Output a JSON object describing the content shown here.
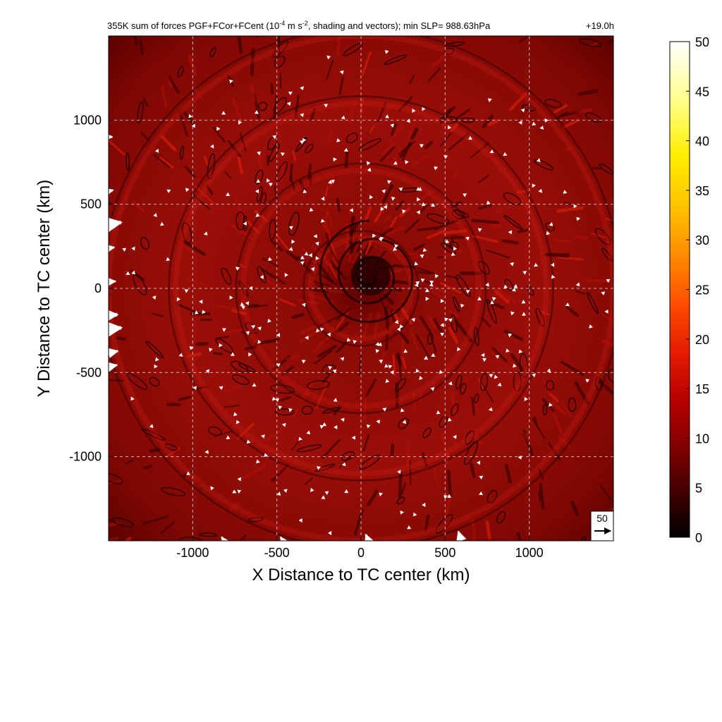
{
  "chart_data": {
    "type": "heatmap",
    "title": {
      "main": "355K sum of forces PGF+FCor+FCent (10",
      "exp1": "-4",
      "mid": " m s",
      "exp2": "-2",
      "end": ", shading and vectors); min SLP= 988.63hPa",
      "time": "+19.0h"
    },
    "xlabel": "X Distance to TC center (km)",
    "ylabel": "Y Distance to TC center (km)",
    "xlim": [
      -1500,
      1500
    ],
    "ylim": [
      -1500,
      1500
    ],
    "x_ticks": [
      -1000,
      -500,
      0,
      500,
      1000
    ],
    "y_ticks": [
      -1000,
      -500,
      0,
      500,
      1000
    ],
    "x_tick_labels": [
      "-1000",
      "-500",
      "0",
      "500",
      "1000"
    ],
    "y_tick_labels": [
      "-1000",
      "-500",
      "0",
      "500",
      "1000"
    ],
    "grid": true,
    "colorbar": {
      "min": 0,
      "max": 50,
      "ticks": [
        0,
        5,
        10,
        15,
        20,
        25,
        30,
        35,
        40,
        45,
        50
      ],
      "tick_labels": [
        "0",
        "5",
        "10",
        "15",
        "20",
        "25",
        "30",
        "35",
        "40",
        "45",
        "50"
      ],
      "colormap": [
        "#000000",
        "#3a0000",
        "#7a0000",
        "#b30000",
        "#e31a00",
        "#ff4d00",
        "#ff8c00",
        "#ffc400",
        "#ffee00",
        "#ffff8a",
        "#ffffff"
      ]
    },
    "reference_vector": {
      "value": 50,
      "label": "50"
    },
    "field_summary": {
      "typical_magnitude": 8,
      "vortex_center": [
        0,
        0
      ],
      "ring_radii_km": [
        300,
        700,
        1100,
        1500
      ]
    },
    "large_vectors": [
      {
        "x": -1500,
        "y": 380,
        "u": 38,
        "v": 6
      },
      {
        "x": -1500,
        "y": -160,
        "u": 26,
        "v": 2
      },
      {
        "x": -1480,
        "y": -240,
        "u": 28,
        "v": 3
      },
      {
        "x": -1480,
        "y": -380,
        "u": 18,
        "v": 4
      },
      {
        "x": -1470,
        "y": -460,
        "u": 10,
        "v": 2
      },
      {
        "x": -1490,
        "y": 40,
        "u": 16,
        "v": 1
      },
      {
        "x": -1490,
        "y": 240,
        "u": 12,
        "v": 2
      },
      {
        "x": -1490,
        "y": 580,
        "u": 8,
        "v": 2
      },
      {
        "x": -1490,
        "y": 900,
        "u": 6,
        "v": 0
      },
      {
        "x": 40,
        "y": -1490,
        "u": -6,
        "v": 14
      },
      {
        "x": 590,
        "y": -1480,
        "u": -6,
        "v": 18
      },
      {
        "x": -820,
        "y": -1490,
        "u": -4,
        "v": 6
      },
      {
        "x": -470,
        "y": -1490,
        "u": -4,
        "v": 6
      }
    ]
  }
}
